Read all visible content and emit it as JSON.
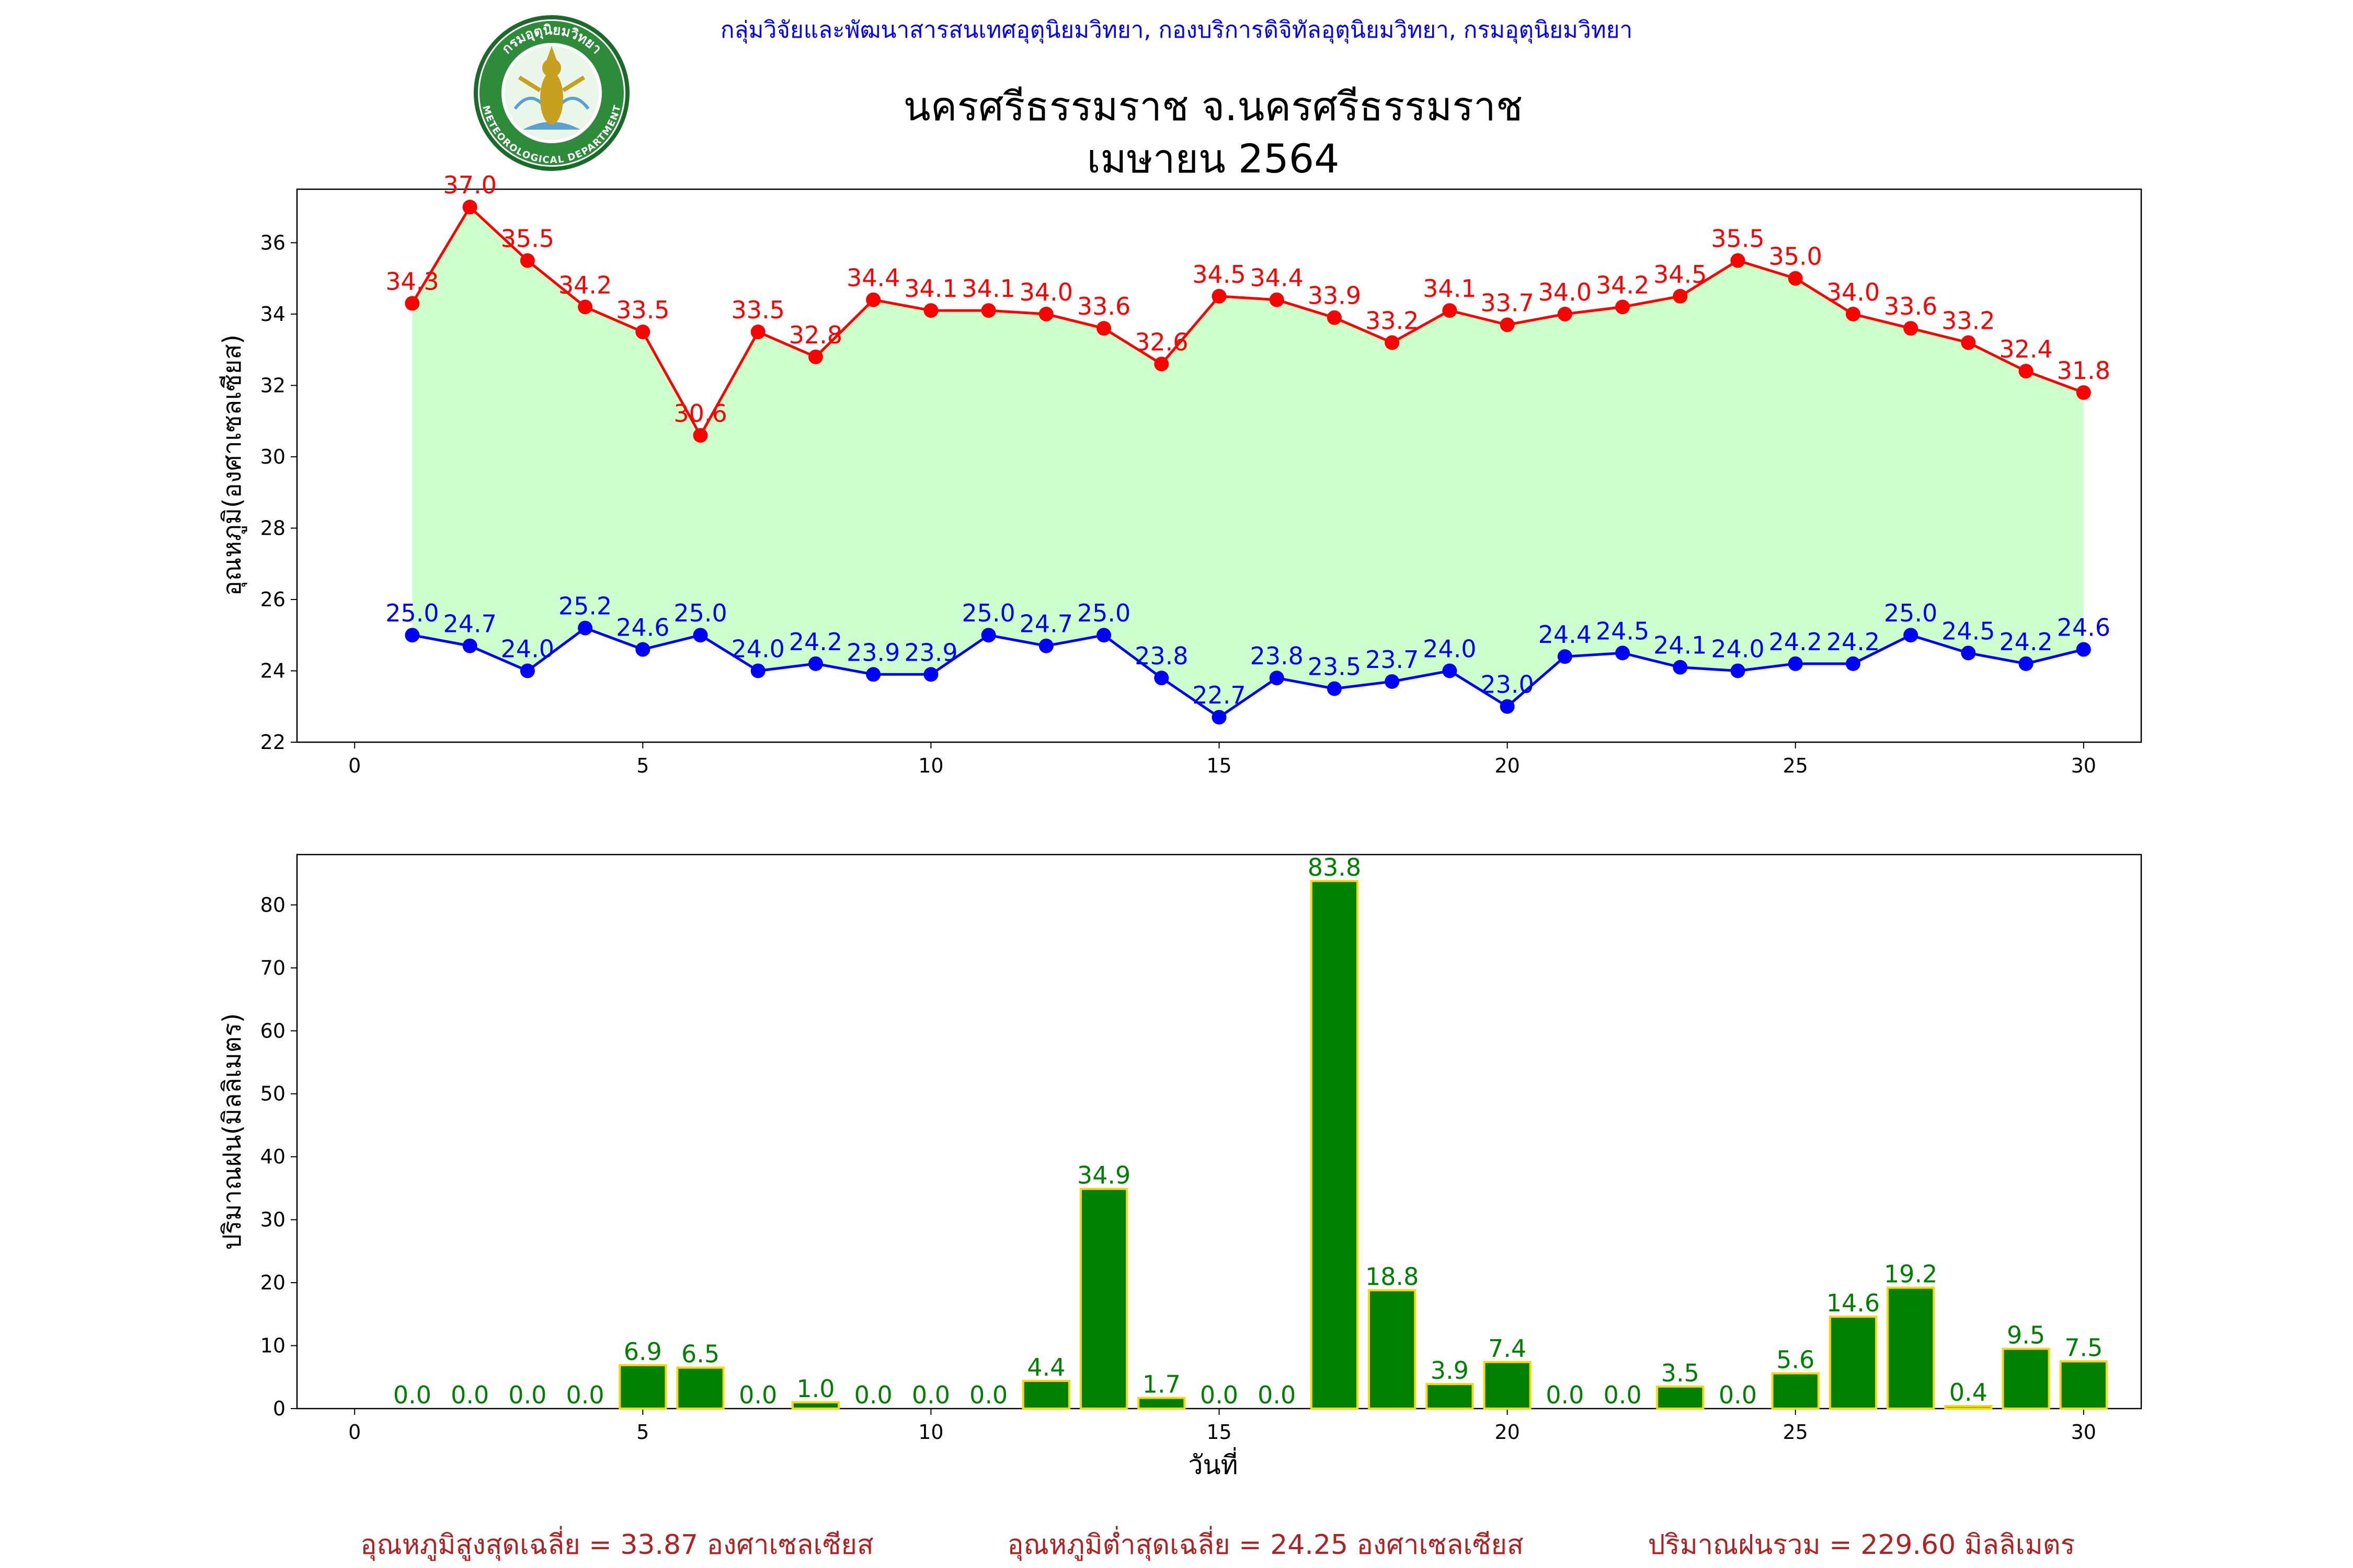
{
  "header": {
    "org_line": "กลุ่มวิจัยและพัฒนาสารสนเทศอุตุนิยมวิทยา, กองบริการดิจิทัลอุตุนิยมวิทยา, กรมอุตุนิยมวิทยา",
    "title_line1": "นครศรีธรรมราช จ.นครศรีธรรมราช",
    "title_line2": "เมษายน 2564",
    "logo_text_top": "กรมอุตุนิยมวิทยา",
    "logo_text_bottom": "METEOROLOGICAL DEPARTMENT"
  },
  "colors": {
    "max_temp": "#ff0000",
    "min_temp": "#0000ff",
    "fill": "#ccffcc",
    "rain_bar": "#008000",
    "rain_edge": "#ffd700",
    "summary": "#b22222",
    "org_line": "#0000ff"
  },
  "chart_data": [
    {
      "type": "line",
      "title": "",
      "xlabel": "",
      "ylabel": "อุณหภูมิ(องศาเซลเซียส)",
      "xlim": [
        -1,
        31
      ],
      "ylim": [
        22,
        37.5
      ],
      "xticks": [
        0,
        5,
        10,
        15,
        20,
        25,
        30
      ],
      "yticks": [
        22,
        24,
        26,
        28,
        30,
        32,
        34,
        36
      ],
      "x": [
        1,
        2,
        3,
        4,
        5,
        6,
        7,
        8,
        9,
        10,
        11,
        12,
        13,
        14,
        15,
        16,
        17,
        18,
        19,
        20,
        21,
        22,
        23,
        24,
        25,
        26,
        27,
        28,
        29,
        30
      ],
      "series": [
        {
          "values": [
            34.3,
            37.0,
            35.5,
            34.2,
            33.5,
            30.6,
            33.5,
            32.8,
            34.4,
            34.1,
            34.1,
            34.0,
            33.6,
            32.6,
            34.5,
            34.4,
            33.9,
            33.2,
            34.1,
            33.7,
            34.0,
            34.2,
            34.5,
            35.5,
            35.0,
            34.0,
            33.6,
            33.2,
            32.4,
            31.8
          ]
        },
        {
          "values": [
            25.0,
            24.7,
            24.0,
            25.2,
            24.6,
            25.0,
            24.0,
            24.2,
            23.9,
            23.9,
            25.0,
            24.7,
            25.0,
            23.8,
            22.7,
            23.8,
            23.5,
            23.7,
            24.0,
            23.0,
            24.4,
            24.5,
            24.1,
            24.0,
            24.2,
            24.2,
            25.0,
            24.5,
            24.2,
            24.6
          ]
        }
      ]
    },
    {
      "type": "bar",
      "title": "",
      "xlabel": "วันที่",
      "ylabel": "ปริมาณฝน(มิลลิเมตร)",
      "xlim": [
        -1,
        31
      ],
      "ylim": [
        0,
        88
      ],
      "xticks": [
        0,
        5,
        10,
        15,
        20,
        25,
        30
      ],
      "yticks": [
        0,
        10,
        20,
        30,
        40,
        50,
        60,
        70,
        80
      ],
      "x": [
        1,
        2,
        3,
        4,
        5,
        6,
        7,
        8,
        9,
        10,
        11,
        12,
        13,
        14,
        15,
        16,
        17,
        18,
        19,
        20,
        21,
        22,
        23,
        24,
        25,
        26,
        27,
        28,
        29,
        30
      ],
      "values": [
        0.0,
        0.0,
        0.0,
        0.0,
        6.9,
        6.5,
        0.0,
        1.0,
        0.0,
        0.0,
        0.0,
        4.4,
        34.9,
        1.7,
        0.0,
        0.0,
        83.8,
        18.8,
        3.9,
        7.4,
        0.0,
        0.0,
        3.5,
        0.0,
        5.6,
        14.6,
        19.2,
        0.4,
        9.5,
        7.5
      ]
    }
  ],
  "summary": {
    "max_avg": "อุณหภูมิสูงสุดเฉลี่ย = 33.87 องศาเซลเซียส",
    "min_avg": "อุณหภูมิต่ำสุดเฉลี่ย = 24.25 องศาเซลเซียส",
    "rain_total": "ปริมาณฝนรวม = 229.60 มิลลิเมตร"
  }
}
